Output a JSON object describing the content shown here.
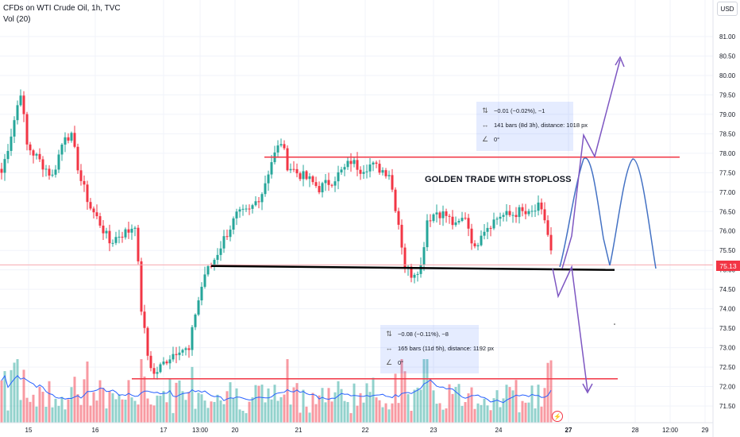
{
  "header": {
    "title": "CFDs on WTI Crude Oil, 1h, TVC",
    "indicator": "Vol (20)",
    "currency": "USD"
  },
  "price_tag": "75.13",
  "annotation": "GOLDEN TRADE WITH STOPLOSS",
  "measure_top": {
    "change": "−0.01 (−0.02%), −1",
    "bars": "141 bars (8d 3h), distance: 1018 px",
    "angle": "0°"
  },
  "measure_bottom": {
    "change": "−0.08 (−0.11%), −8",
    "bars": "165 bars (11d 5h), distance: 1192 px",
    "angle": "0°"
  },
  "colors": {
    "up": "#26a69a",
    "down": "#f23645",
    "projection": "#4472c4",
    "arrow": "#7e57c2",
    "support": "#000000"
  },
  "chart_data": {
    "type": "candlestick",
    "ylim": [
      71.2,
      81.4
    ],
    "y_ticks": [
      "81.00",
      "80.50",
      "80.00",
      "79.50",
      "79.00",
      "78.50",
      "78.00",
      "77.50",
      "77.00",
      "76.50",
      "76.00",
      "75.50",
      "75.00",
      "74.50",
      "74.00",
      "73.50",
      "73.00",
      "72.50",
      "72.00",
      "71.50"
    ],
    "x_ticks": [
      "15",
      "16",
      "17",
      "13:00",
      "20",
      "21",
      "22",
      "23",
      "24",
      "27",
      "28",
      "29",
      "12:00"
    ],
    "anchors": [
      [
        0,
        77.5
      ],
      [
        3,
        78.5
      ],
      [
        6,
        79.6
      ],
      [
        8,
        78.2
      ],
      [
        12,
        77.8
      ],
      [
        16,
        77.4
      ],
      [
        20,
        78.5
      ],
      [
        22,
        78.4
      ],
      [
        25,
        77.3
      ],
      [
        28,
        76.6
      ],
      [
        31,
        76.2
      ],
      [
        34,
        75.7
      ],
      [
        37,
        75.9
      ],
      [
        40,
        76.0
      ],
      [
        42,
        76.2
      ],
      [
        44,
        74.0
      ],
      [
        46,
        72.8
      ],
      [
        48,
        72.3
      ],
      [
        52,
        72.7
      ],
      [
        56,
        73.0
      ],
      [
        59,
        72.9
      ],
      [
        61,
        73.9
      ],
      [
        64,
        74.9
      ],
      [
        66,
        75.1
      ],
      [
        70,
        75.8
      ],
      [
        74,
        76.4
      ],
      [
        78,
        76.5
      ],
      [
        82,
        77.0
      ],
      [
        85,
        77.8
      ],
      [
        88,
        78.3
      ],
      [
        90,
        77.7
      ],
      [
        93,
        77.5
      ],
      [
        97,
        77.3
      ],
      [
        100,
        77.1
      ],
      [
        104,
        77.3
      ],
      [
        108,
        77.6
      ],
      [
        110,
        77.8
      ],
      [
        113,
        77.6
      ],
      [
        116,
        77.7
      ],
      [
        119,
        77.6
      ],
      [
        122,
        77.5
      ],
      [
        125,
        76.2
      ],
      [
        127,
        75.1
      ],
      [
        129,
        74.9
      ],
      [
        132,
        75.1
      ],
      [
        134,
        76.3
      ],
      [
        137,
        76.5
      ],
      [
        140,
        76.4
      ],
      [
        143,
        76.1
      ],
      [
        146,
        76.4
      ],
      [
        149,
        75.5
      ],
      [
        151,
        76.0
      ],
      [
        154,
        76.2
      ],
      [
        157,
        76.4
      ],
      [
        160,
        76.4
      ],
      [
        163,
        76.5
      ],
      [
        166,
        76.4
      ],
      [
        169,
        76.6
      ],
      [
        171,
        76.3
      ],
      [
        173,
        75.5
      ]
    ],
    "volume_avg": 0.55,
    "levels": {
      "resistance": 77.9,
      "support_start": 75.1,
      "support_end": 75.0,
      "lower": 72.2
    }
  }
}
